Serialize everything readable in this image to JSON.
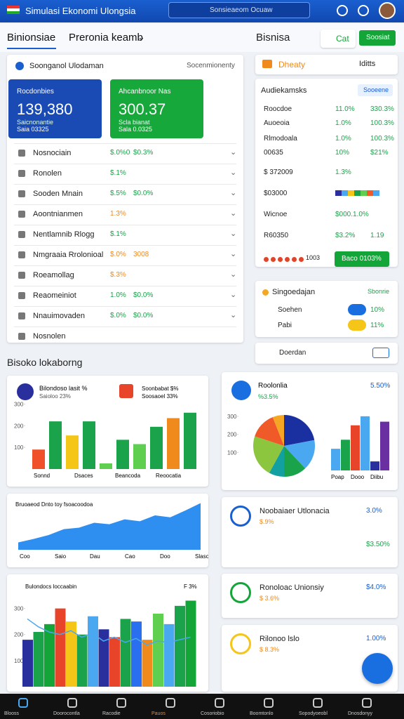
{
  "header": {
    "title": "Simulasi Ekonomi Ulongsia",
    "search": "Sonsieaeom Ocuaw"
  },
  "tabs": {
    "items": [
      "Binionsiae",
      "Preronia keamb"
    ],
    "right": "Bisnisa",
    "add": "Cat",
    "action": "Soosiat"
  },
  "main_panel": {
    "title": "Soonganol Ulodaman",
    "filter": "Socenmionenty",
    "cards": [
      {
        "label": "Rocdonbies",
        "value": "139,380",
        "sub": "Saicnonantie",
        "note": "Saia 03325",
        "color": "#1a4bb5"
      },
      {
        "label": "Ahcanbnoor Nas",
        "value": "300.37",
        "sub": "Scla bianat",
        "note": "Sala 0.0325",
        "color": "#16a83a"
      }
    ],
    "rows": [
      {
        "name": "Nosnociain",
        "value": "$.0%0",
        "extra": "$0.3%",
        "color": "#1aa34a"
      },
      {
        "name": "Ronolen",
        "value": "$.1%",
        "color": "#1aa34a"
      },
      {
        "name": "Sooden Mnain",
        "value": "$.5%",
        "extra": "$0.0%",
        "color": "#1aa34a"
      },
      {
        "name": "Aoontnianmen",
        "value": "1.3%",
        "color": "#f08a1c"
      },
      {
        "name": "Nentlamnib Rlogg",
        "value": "$.1%",
        "color": "#1aa34a"
      },
      {
        "name": "Nmgraaia Rrolonioal",
        "value": "$.0%",
        "extra": "3008",
        "color": "#f08a1c"
      },
      {
        "name": "Roeamollag",
        "value": "$.3%",
        "color": "#f08a1c"
      },
      {
        "name": "Reaomeiniot",
        "value": "1.0%",
        "extra": "$0.0%",
        "color": "#1aa34a"
      },
      {
        "name": "Nnauimovaden",
        "value": "$.0%",
        "extra": "$0.0%",
        "color": "#1aa34a"
      },
      {
        "name": "Nosnolen"
      }
    ]
  },
  "side_panel": {
    "title": "Dheaty",
    "link": "Iditts",
    "section": "Audiekamsks",
    "badge": "Sooeene",
    "rows": [
      {
        "name": "Roocdoe",
        "value": "11.0%",
        "extra": "330.3%"
      },
      {
        "name": "Auoeoia",
        "value": "1.0%",
        "extra": "100.3%"
      },
      {
        "name": "Rlmodoala",
        "value": "1.0%",
        "extra": "100.3%"
      },
      {
        "name": "00635",
        "value": "10%",
        "extra": "$21%"
      },
      {
        "name": "$ 372009",
        "value": "1.3%"
      },
      {
        "name": "$03000"
      },
      {
        "name": "Wicnoe",
        "value": "$000.1.0%"
      },
      {
        "name": "R60350",
        "value": "$3.2%",
        "extra": "1.19"
      }
    ],
    "dots_label": "1003",
    "button": "Baco 0103%"
  },
  "status_panel": {
    "title": "Singoedajan",
    "value": "Sbonrie",
    "rows": [
      {
        "name": "Soehen",
        "value": "10%"
      },
      {
        "name": "Pabi",
        "value": "11%"
      }
    ],
    "footer": "Doerdan"
  },
  "section_title": "Bisoko lokaborng",
  "charts": [
    {
      "type": "bar",
      "title": "Bilondoso lasit %",
      "subtitle": "Saioloo 23%",
      "legend": [
        "Soonbabat $%",
        "Soosaoel 33%"
      ],
      "xlabels": [
        "Sonnd",
        "Dsaces",
        "Beancoda",
        "Reoocatia"
      ],
      "values": [
        90,
        220,
        155,
        220,
        26,
        135,
        115,
        195,
        235,
        260
      ],
      "colors": [
        "#f0502a",
        "#1aa34a",
        "#f5c518",
        "#1aa34a",
        "#5fcf50",
        "#1aa34a",
        "#5fcf50",
        "#1aa34a",
        "#f08a1c",
        "#1aa34a"
      ],
      "ylim": [
        0,
        350
      ],
      "yticks": [
        100,
        200,
        300
      ]
    },
    {
      "type": "area",
      "title": "Bruoaeod Dnto toy fsoacoodoa",
      "xlabels": [
        "Coo",
        "Saio",
        "Dau",
        "Cao",
        "Doo",
        "Slaso"
      ],
      "values": [
        15,
        22,
        30,
        42,
        45,
        55,
        52,
        62,
        58,
        70,
        66,
        80,
        95
      ],
      "color": "#2f8ff0",
      "ylim": [
        0,
        100
      ]
    },
    {
      "type": "bar",
      "title": "Bulondocs loccaabin",
      "subtitle": "F 3%",
      "values": [
        180,
        210,
        240,
        300,
        250,
        200,
        270,
        220,
        190,
        260,
        250,
        180,
        280,
        240,
        310,
        330
      ],
      "colors": [
        "#2a2f9e",
        "#1aa34a",
        "#13a538",
        "#e8442a",
        "#f5c518",
        "#1aa34a",
        "#4aa8f0",
        "#2a2f9e",
        "#e8442a",
        "#1aa34a",
        "#2a6ff0",
        "#f08a1c",
        "#5fcf50",
        "#4aa8f0",
        "#1aa34a",
        "#13a538"
      ],
      "line": [
        260,
        230,
        210,
        200,
        215,
        190,
        205,
        175,
        190,
        170,
        185,
        160,
        175,
        170,
        180,
        190
      ],
      "line_color": "#4aa8f0",
      "ylim": [
        0,
        350
      ],
      "yticks": [
        100,
        200,
        300
      ]
    },
    {
      "type": "pie",
      "title": "Roolonlia",
      "value": "5.50%",
      "subtitle": "%3.5%",
      "values": [
        22,
        16,
        12,
        8,
        22,
        14,
        6
      ],
      "colors": [
        "#1a2fa0",
        "#4aa8f0",
        "#1aa34a",
        "#13a0a0",
        "#8cc63f",
        "#f05a28",
        "#f5a623"
      ],
      "bars": [
        120,
        170,
        250,
        300,
        50,
        270
      ],
      "bar_colors": [
        "#4aa8f0",
        "#1aa34a",
        "#e8442a",
        "#4aa8f0",
        "#2a2f9e",
        "#6a2fa0"
      ],
      "xlabels": [
        "Poap",
        "Dooo",
        "Diibu"
      ],
      "ylim": [
        0,
        350
      ],
      "yticks": [
        100,
        200,
        300
      ]
    }
  ],
  "stat_cards": [
    {
      "title": "Noobaiaer Utlonacia",
      "value": "3.0%",
      "subtitle": "$.9%",
      "extra": "$3.50%"
    },
    {
      "title": "Ronoloac Unionsiy",
      "value": "$4.0%",
      "subtitle": "$ 3.6%"
    },
    {
      "title": "Rilonoo lslo",
      "value": "1.00%",
      "subtitle": "$ 8.3%"
    }
  ],
  "nav": [
    "Blooss",
    "Doorocontla",
    "Racodie",
    "Pauos",
    "Cosoriobio",
    "Boomtonlo",
    "Sopodyoeobl",
    "Dnosdonyy"
  ]
}
